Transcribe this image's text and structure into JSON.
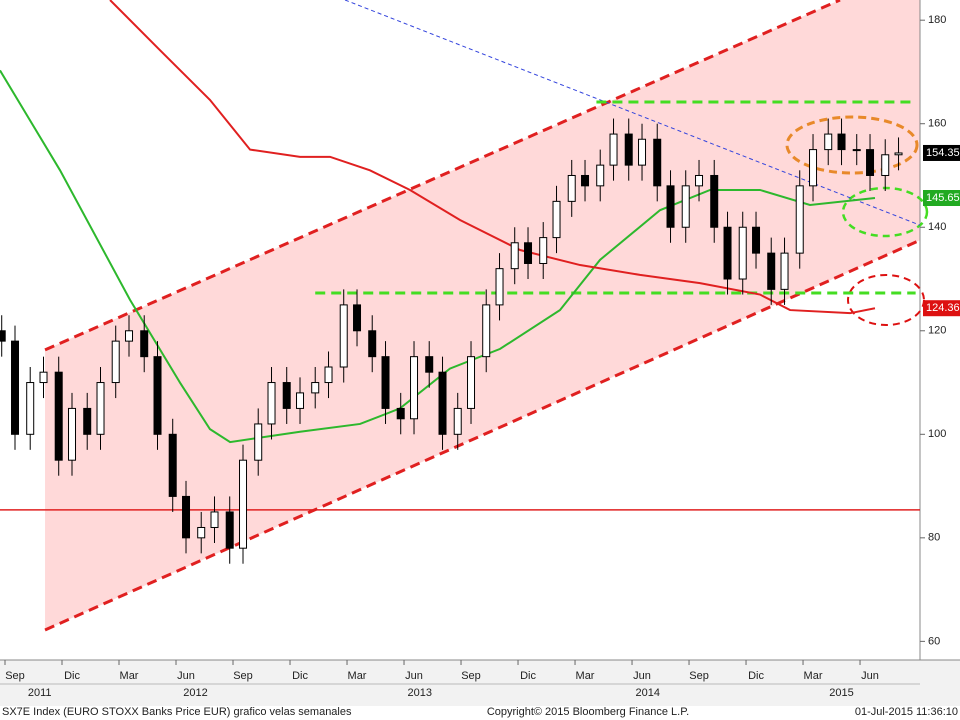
{
  "chart_data": {
    "type": "candlestick",
    "footer_left": "SX7E Index (EURO STOXX Banks Price EUR) grafico velas semanales",
    "footer_center": "Copyright© 2015 Bloomberg Finance L.P.",
    "footer_right": "01-Jul-2015 11:36:10",
    "xlim": [
      7.21,
      55.63
    ],
    "ylim": [
      56.4,
      183.9
    ],
    "yticks": [
      60,
      80,
      100,
      120,
      140,
      160,
      180
    ],
    "xticks": [
      {
        "value": 8,
        "label": "Sep"
      },
      {
        "value": 11,
        "label": "Dic"
      },
      {
        "value": 14,
        "label": "Mar"
      },
      {
        "value": 17,
        "label": "Jun"
      },
      {
        "value": 20,
        "label": "Sep"
      },
      {
        "value": 23,
        "label": "Dic"
      },
      {
        "value": 26,
        "label": "Mar"
      },
      {
        "value": 29,
        "label": "Jun"
      },
      {
        "value": 32,
        "label": "Sep"
      },
      {
        "value": 35,
        "label": "Dic"
      },
      {
        "value": 38,
        "label": "Mar"
      },
      {
        "value": 41,
        "label": "Jun"
      },
      {
        "value": 44,
        "label": "Sep"
      },
      {
        "value": 47,
        "label": "Dic"
      },
      {
        "value": 50,
        "label": "Mar"
      },
      {
        "value": 53,
        "label": "Jun"
      }
    ],
    "year_ticks": [
      {
        "value": 9.3,
        "label": "2011"
      },
      {
        "value": 17.5,
        "label": "2012"
      },
      {
        "value": 29.3,
        "label": "2013"
      },
      {
        "value": 41.3,
        "label": "2014"
      },
      {
        "value": 51.5,
        "label": "2015"
      }
    ],
    "x": [
      7.3,
      8,
      8.8,
      9.5,
      10.3,
      11,
      11.8,
      12.5,
      13.3,
      14,
      14.8,
      15.5,
      16.3,
      17,
      17.8,
      18.5,
      19.3,
      20,
      20.8,
      21.5,
      22.3,
      23,
      23.8,
      24.5,
      25.3,
      26,
      26.8,
      27.5,
      28.3,
      29,
      29.8,
      30.5,
      31.3,
      32,
      32.8,
      33.5,
      34.3,
      35,
      35.8,
      36.5,
      37.3,
      38,
      38.8,
      39.5,
      40.3,
      41,
      41.8,
      42.5,
      43.3,
      44,
      44.8,
      45.5,
      46.3,
      47,
      47.8,
      48.5,
      49.3,
      50,
      50.8,
      51.5,
      52.3,
      53,
      53.8,
      54.5
    ],
    "open": [
      120,
      118,
      100,
      110,
      112,
      95,
      105,
      100,
      110,
      118,
      120,
      115,
      100,
      88,
      80,
      82,
      85,
      78,
      95,
      102,
      110,
      105,
      108,
      110,
      113,
      125,
      120,
      115,
      105,
      103,
      115,
      112,
      100,
      105,
      115,
      125,
      132,
      137,
      133,
      138,
      145,
      150,
      148,
      152,
      158,
      152,
      157,
      148,
      140,
      148,
      150,
      140,
      130,
      140,
      135,
      128,
      135,
      148,
      155,
      158,
      155,
      155,
      150,
      154
    ],
    "high": [
      123,
      121,
      113,
      115,
      115,
      108,
      108,
      113,
      121,
      123,
      123,
      118,
      103,
      91,
      85,
      88,
      88,
      98,
      105,
      113,
      113,
      111,
      113,
      116,
      128,
      128,
      123,
      118,
      108,
      118,
      118,
      115,
      108,
      118,
      128,
      135,
      140,
      140,
      141,
      148,
      153,
      153,
      155,
      161,
      161,
      160,
      160,
      151,
      151,
      153,
      153,
      143,
      143,
      143,
      138,
      138,
      151,
      158,
      161,
      161,
      158,
      158,
      157,
      157.35
    ],
    "low": [
      115,
      97,
      97,
      107,
      92,
      92,
      97,
      97,
      107,
      115,
      112,
      97,
      85,
      77,
      77,
      79,
      75,
      75,
      92,
      99,
      102,
      102,
      105,
      107,
      110,
      117,
      112,
      102,
      100,
      100,
      109,
      97,
      97,
      102,
      112,
      122,
      129,
      130,
      130,
      135,
      142,
      145,
      145,
      149,
      149,
      149,
      145,
      137,
      137,
      145,
      137,
      127,
      127,
      132,
      125,
      125,
      132,
      145,
      152,
      152,
      152,
      147,
      147,
      151
    ],
    "close": [
      118,
      100,
      110,
      112,
      95,
      105,
      100,
      110,
      118,
      120,
      115,
      100,
      88,
      80,
      82,
      85,
      78,
      95,
      102,
      110,
      105,
      108,
      110,
      113,
      125,
      120,
      115,
      105,
      103,
      115,
      112,
      100,
      105,
      115,
      125,
      132,
      137,
      133,
      138,
      145,
      150,
      148,
      152,
      158,
      152,
      157,
      148,
      140,
      148,
      150,
      140,
      130,
      140,
      135,
      128,
      135,
      148,
      155,
      158,
      155,
      155,
      150,
      154,
      154.35
    ],
    "series": [
      {
        "color": "#2db82d",
        "x": [
          7.21,
          10.37,
          14.05,
          16.68,
          18.26,
          19.32,
          23,
          26.16,
          28.26,
          30.89,
          33.53,
          36.68,
          38.79,
          41.95,
          44.58,
          47.21,
          49.84,
          53.26
        ],
        "values": [
          170.3,
          151,
          126,
          110,
          101,
          98.5,
          100.5,
          102,
          105,
          112.7,
          116.5,
          124,
          133.7,
          143.3,
          147.2,
          147.2,
          144.3,
          145.65
        ]
      },
      {
        "color": "#e02020",
        "x": [
          13,
          15.63,
          18.26,
          20.37,
          23,
          24.58,
          26.68,
          28.79,
          31.42,
          34.58,
          37.74,
          40.89,
          44.05,
          47.21,
          48.79,
          51.95,
          53.26
        ],
        "values": [
          183.9,
          174.2,
          164.6,
          155,
          153.6,
          153.6,
          151,
          147.2,
          141.4,
          135.6,
          132.7,
          130.8,
          129.2,
          127,
          124,
          123.4,
          124.36
        ]
      }
    ],
    "lines": [
      {
        "color": "#e02020",
        "style": "dashed",
        "width": 3,
        "x": [
          9.58,
          51.42
        ],
        "values": [
          116.3,
          183.9
        ]
      },
      {
        "color": "#e02020",
        "style": "dashed",
        "width": 3,
        "x": [
          9.58,
          55.63
        ],
        "values": [
          62.2,
          137.5
        ]
      },
      {
        "color": "#3344dd",
        "style": "dotted",
        "width": 1,
        "x": [
          25.37,
          55.63
        ],
        "values": [
          183.9,
          140.4
        ]
      },
      {
        "color": "#44dd22",
        "style": "dashed",
        "width": 3,
        "x": [
          38.6,
          55.4
        ],
        "values": [
          164.2,
          164.2
        ]
      },
      {
        "color": "#44dd22",
        "style": "dashed",
        "width": 3,
        "x": [
          23.8,
          55.4
        ],
        "values": [
          127.3,
          127.3
        ]
      },
      {
        "color": "#e02020",
        "style": "solid",
        "width": 1.5,
        "x": [
          7.21,
          55.63
        ],
        "values": [
          85.4,
          85.4
        ]
      }
    ],
    "channel_fill": "#ffd9d9",
    "price_tags": [
      {
        "value": 154.35,
        "color": "#000000"
      },
      {
        "value": 145.65,
        "color": "#22aa22"
      },
      {
        "value": 124.36,
        "color": "#dd1111"
      }
    ]
  }
}
